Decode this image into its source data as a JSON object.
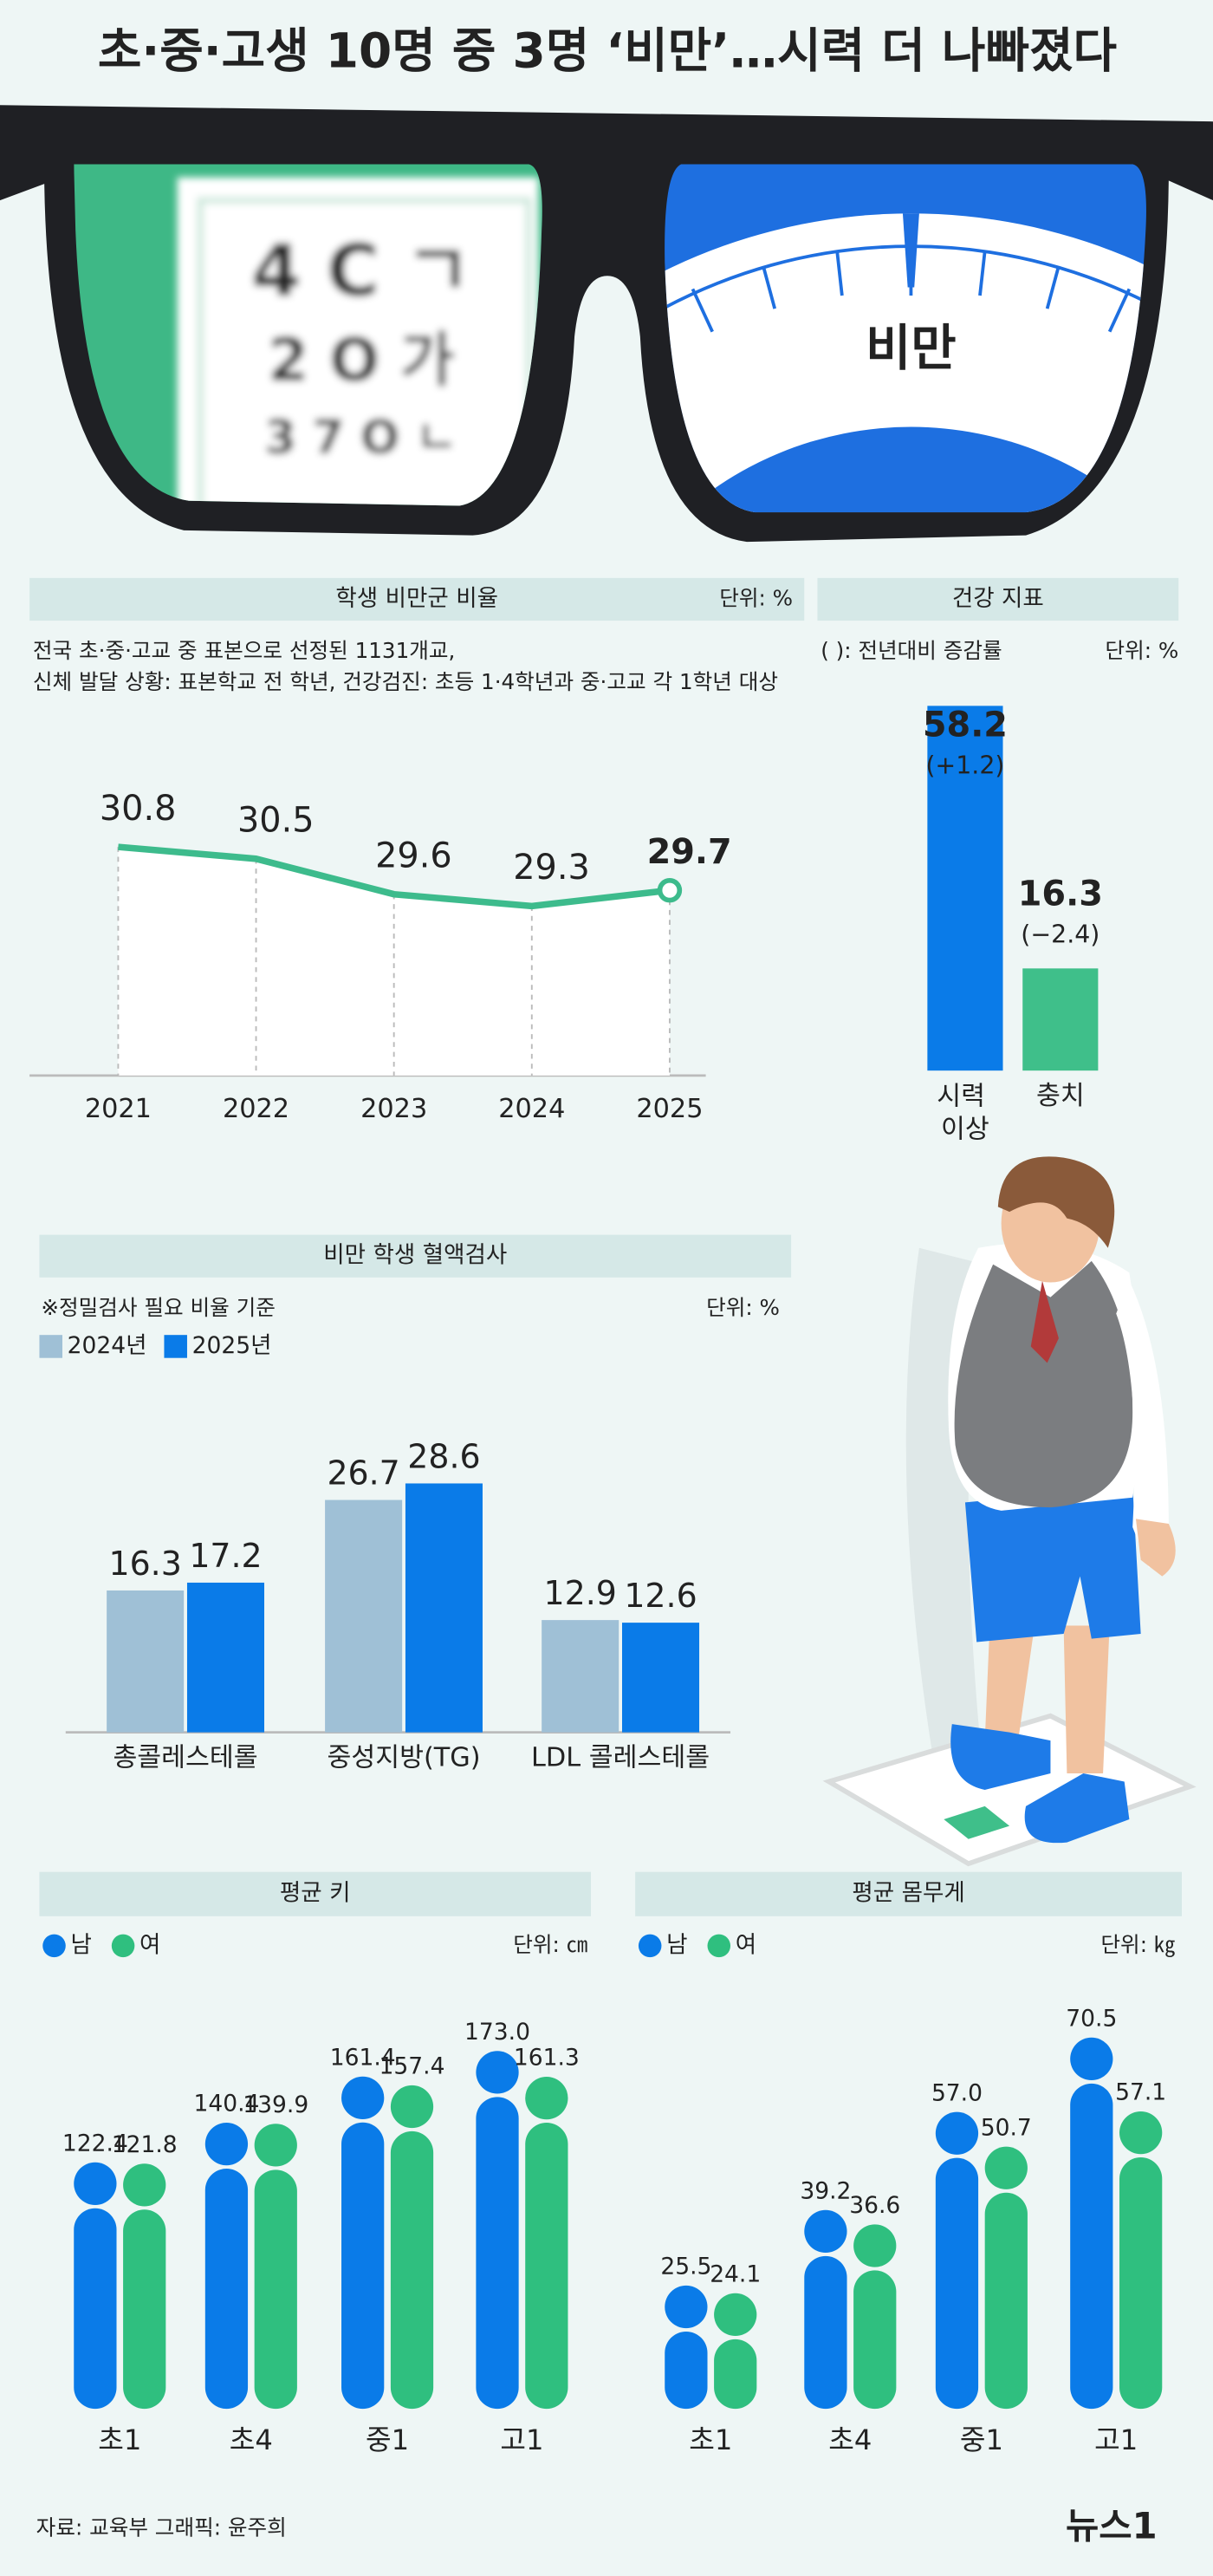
{
  "title": "초·중·고생 10명 중 3명 ‘비만’…시력 더 나빠졌다",
  "illustration": {
    "eye_chart": [
      "4 C ㄱ",
      "2 O 가",
      "3 7 O ㄴ"
    ],
    "scale_label": "비만"
  },
  "chart_data": [
    {
      "type": "line",
      "title": "학생 비만군 비율",
      "unit": "단위: %",
      "notes": [
        "전국 초·중·고교 중 표본으로 선정된 1131개교,",
        "신체 발달 상황: 표본학교 전 학년, 건강검진: 초등 1·4학년과 중·고교 각 1학년 대상"
      ],
      "categories": [
        "2021",
        "2022",
        "2023",
        "2024",
        "2025"
      ],
      "values": [
        30.8,
        30.5,
        29.6,
        29.3,
        29.7
      ],
      "color": "#3dbb8c",
      "ylim": [
        25,
        35
      ]
    },
    {
      "type": "bar",
      "title": "건강 지표",
      "notes": [
        "(   ): 전년대비 증감률"
      ],
      "unit": "단위: %",
      "categories": [
        "시력 이상",
        "충치"
      ],
      "values": [
        58.2,
        16.3
      ],
      "change_labels": [
        "(+1.2)",
        "(−2.4)"
      ],
      "colors": [
        "#0a7be8",
        "#3fbf8a"
      ],
      "ylim": [
        0,
        60
      ]
    },
    {
      "type": "bar",
      "title": "비만 학생 혈액검사",
      "notes": [
        "※정밀검사 필요 비율 기준"
      ],
      "unit": "단위: %",
      "categories": [
        "총콜레스테롤",
        "중성지방(TG)",
        "LDL 콜레스테롤"
      ],
      "series": [
        {
          "name": "2024년",
          "color": "#9fc0d6",
          "values": [
            16.3,
            26.7,
            12.9
          ]
        },
        {
          "name": "2025년",
          "color": "#0a7be8",
          "values": [
            17.2,
            28.6,
            12.6
          ]
        }
      ],
      "ylim": [
        0,
        30
      ]
    },
    {
      "type": "lollipop",
      "title": "평균 키",
      "unit": "단위: ㎝",
      "categories": [
        "초1",
        "초4",
        "중1",
        "고1"
      ],
      "series": [
        {
          "name": "남",
          "color": "#0a7be8",
          "values": [
            122.4,
            140.4,
            161.4,
            173
          ],
          "value_labels": [
            "122.4",
            "140.4",
            "161.4",
            "173.0"
          ]
        },
        {
          "name": "여",
          "color": "#2fbf7f",
          "values": [
            121.8,
            139.9,
            157.4,
            161.3
          ]
        }
      ],
      "ylim": [
        20,
        185
      ]
    },
    {
      "type": "lollipop",
      "title": "평균 몸무게",
      "unit": "단위: ㎏",
      "categories": [
        "초1",
        "초4",
        "중1",
        "고1"
      ],
      "series": [
        {
          "name": "남",
          "color": "#0a7be8",
          "values": [
            25.5,
            39.2,
            57,
            70.5
          ],
          "value_labels": [
            "25.5",
            "39.2",
            "57.0",
            "70.5"
          ]
        },
        {
          "name": "여",
          "color": "#2fbf7f",
          "values": [
            24.1,
            36.6,
            50.7,
            57.1
          ]
        }
      ],
      "ylim": [
        7,
        80
      ]
    }
  ],
  "source": "자료: 교육부 그래픽: 윤주희",
  "logo": "뉴스1"
}
